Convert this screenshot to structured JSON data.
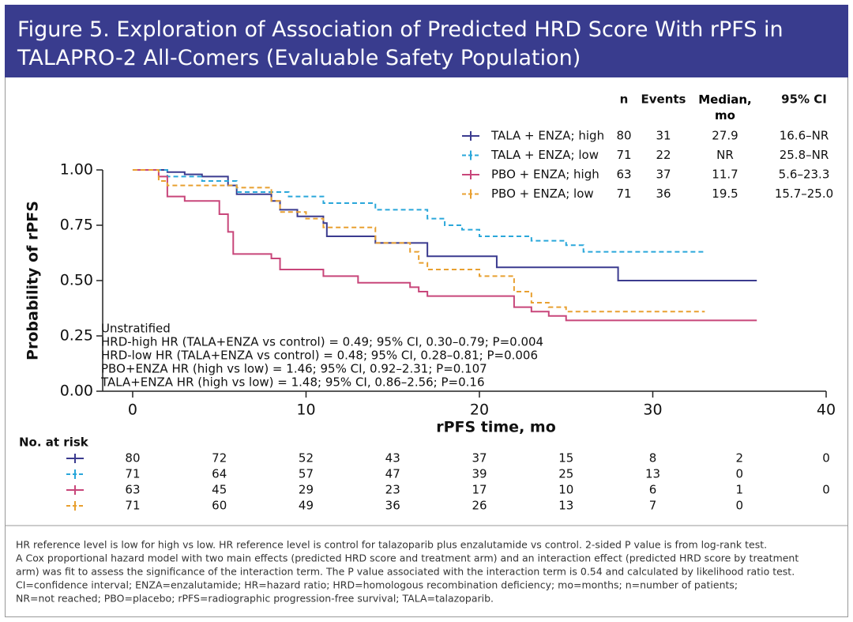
{
  "title": "Figure 5. Exploration of Association of Predicted HRD Score With rPFS in TALAPRO-2 All-Comers (Evaluable Safety Population)",
  "chart_data": {
    "type": "step",
    "x_label": "rPFS time, mo",
    "y_label": "Probability of rPFS",
    "xlim": [
      -1.73,
      40
    ],
    "ylim": [
      0,
      1
    ],
    "xticks": [
      0,
      10,
      20,
      30,
      40
    ],
    "yticks": [
      {
        "value": 0,
        "label": "0.00"
      },
      {
        "value": 0.25,
        "label": "0.25"
      },
      {
        "value": 0.5,
        "label": "0.50"
      },
      {
        "value": 0.75,
        "label": "0.75"
      },
      {
        "value": 1,
        "label": "1.00"
      }
    ],
    "series": [
      {
        "name": "TALA + ENZA; high",
        "color": "#3b3b8f",
        "dashed": false,
        "x": [
          0,
          2,
          3,
          4,
          5.5,
          6,
          8,
          8.5,
          9.5,
          11,
          11.2,
          14,
          17,
          21,
          28,
          36
        ],
        "values": [
          1,
          0.99,
          0.98,
          0.97,
          0.93,
          0.89,
          0.86,
          0.82,
          0.79,
          0.76,
          0.7,
          0.67,
          0.61,
          0.56,
          0.5,
          0.5
        ]
      },
      {
        "name": "TALA + ENZA; low",
        "color": "#2aa7da",
        "dashed": true,
        "x": [
          0,
          2,
          4,
          6,
          9,
          11,
          14,
          17,
          18,
          19,
          20,
          23,
          25,
          26,
          33
        ],
        "values": [
          1,
          0.97,
          0.95,
          0.9,
          0.88,
          0.85,
          0.82,
          0.78,
          0.75,
          0.73,
          0.7,
          0.68,
          0.66,
          0.63,
          0.63
        ]
      },
      {
        "name": "PBO + ENZA; high",
        "color": "#c8467a",
        "dashed": false,
        "x": [
          0,
          1.5,
          2,
          3,
          5,
          5.5,
          5.8,
          8,
          8.5,
          11,
          13,
          16,
          16.5,
          17,
          22,
          23,
          24,
          25,
          36
        ],
        "values": [
          1,
          0.97,
          0.88,
          0.86,
          0.8,
          0.72,
          0.62,
          0.6,
          0.55,
          0.52,
          0.49,
          0.47,
          0.45,
          0.43,
          0.38,
          0.36,
          0.34,
          0.32,
          0.32
        ]
      },
      {
        "name": "PBO + ENZA; low",
        "color": "#e8a030",
        "dashed": true,
        "x": [
          0,
          1.5,
          2,
          6,
          8,
          8.5,
          10,
          11,
          14,
          16,
          16.5,
          17,
          20,
          22,
          23,
          24,
          25,
          33
        ],
        "values": [
          1,
          0.95,
          0.93,
          0.92,
          0.86,
          0.81,
          0.78,
          0.74,
          0.67,
          0.63,
          0.58,
          0.55,
          0.52,
          0.45,
          0.4,
          0.38,
          0.36,
          0.36
        ]
      }
    ],
    "summary_table": {
      "columns": [
        "n",
        "Events",
        "Median, mo",
        "95% CI"
      ],
      "rows": [
        [
          80,
          31,
          "27.9",
          "16.6–NR"
        ],
        [
          71,
          22,
          "NR",
          "25.8–NR"
        ],
        [
          63,
          37,
          "11.7",
          "5.6–23.3"
        ],
        [
          71,
          36,
          "19.5",
          "15.7–25.0"
        ]
      ]
    },
    "annotations": [
      "Unstratified",
      "HRD-high HR (TALA+ENZA vs control) = 0.49; 95% CI, 0.30–0.79; P=0.004",
      "HRD-low HR (TALA+ENZA vs control) = 0.48; 95% CI, 0.28–0.81; P=0.006",
      "PBO+ENZA HR (high vs low) = 1.46; 95% CI, 0.92–2.31; P=0.107",
      "TALA+ENZA HR (high vs low) = 1.48; 95% CI, 0.86–2.56; P=0.16"
    ],
    "risk_table": {
      "title": "No. at risk",
      "rows": [
        [
          80,
          72,
          52,
          43,
          37,
          15,
          8,
          2,
          0
        ],
        [
          71,
          64,
          57,
          47,
          39,
          25,
          13,
          0,
          null
        ],
        [
          63,
          45,
          29,
          23,
          17,
          10,
          6,
          1,
          0
        ],
        [
          71,
          60,
          49,
          36,
          26,
          13,
          7,
          0,
          null
        ]
      ]
    }
  },
  "footnotes": [
    "HR reference level is low for high vs low. HR reference level is control for talazoparib plus enzalutamide vs control. 2-sided P value is from log-rank test.",
    "A Cox proportional hazard model with two main effects (predicted HRD score and treatment arm) and an interaction effect (predicted HRD score by treatment",
    "arm) was fit to assess the significance of the interaction term. The P value associated with the interaction term is 0.54 and calculated by likelihood ratio test.",
    "CI=confidence interval; ENZA=enzalutamide; HR=hazard ratio; HRD=homologous recombination deficiency; mo=months; n=number of patients;",
    "NR=not reached; PBO=placebo; rPFS=radiographic progression-free survival; TALA=talazoparib."
  ]
}
